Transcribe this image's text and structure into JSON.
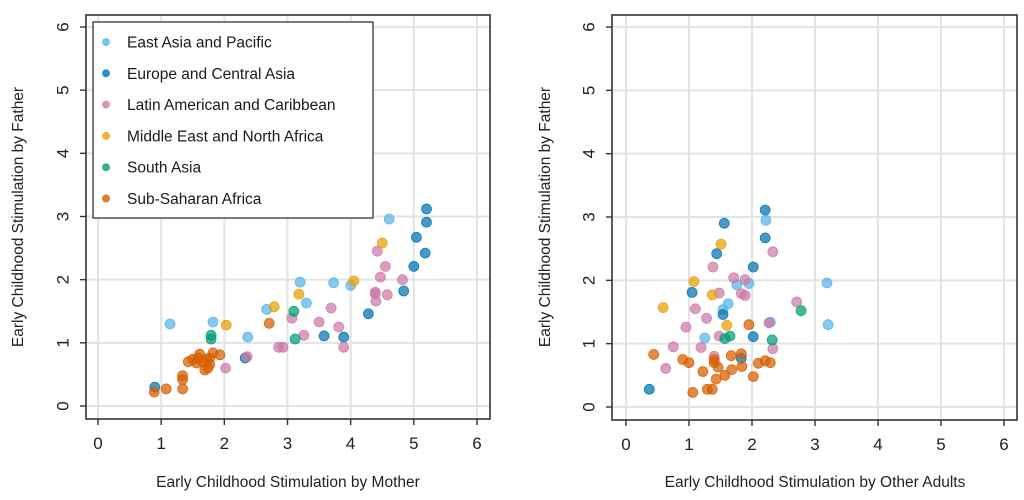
{
  "chart_data": {
    "type": "scatter",
    "categories_colors": {
      "East Asia and Pacific": "#56B4E9",
      "Europe and Central Asia": "#0072B2",
      "Latin American and Caribbean": "#CC79A7",
      "Middle East and North Africa": "#E69F00",
      "South Asia": "#009E73",
      "Sub-Saharan Africa": "#D55E00"
    },
    "legend": {
      "placement": "top-left",
      "entries": [
        {
          "key": "EAP",
          "label": "East Asia and Pacific",
          "color": "#56B4E9"
        },
        {
          "key": "ECA",
          "label": "Europe and Central Asia",
          "color": "#0072B2"
        },
        {
          "key": "LAC",
          "label": "Latin American and Caribbean",
          "color": "#CC79A7"
        },
        {
          "key": "MENA",
          "label": "Middle East and North Africa",
          "color": "#E69F00"
        },
        {
          "key": "SA",
          "label": "South Asia",
          "color": "#009E73"
        },
        {
          "key": "SSA",
          "label": "Sub-Saharan Africa",
          "color": "#D55E00"
        }
      ]
    },
    "panels": [
      {
        "name": "mother",
        "xlabel": "Early Childhood Stimulation by Mother",
        "ylabel": "Early Childhood Stimulation by Father",
        "xlim": [
          0,
          6
        ],
        "ylim": [
          0,
          6
        ],
        "xticks": [
          "0",
          "1",
          "2",
          "3",
          "4",
          "5",
          "6"
        ],
        "yticks": [
          "0",
          "1",
          "2",
          "3",
          "4",
          "5",
          "6"
        ],
        "grid": true,
        "has_legend": true,
        "series": [
          {
            "key": "EAP",
            "points": [
              [
                1.14,
                1.3
              ],
              [
                1.82,
                1.33
              ],
              [
                2.37,
                1.09
              ],
              [
                2.67,
                1.53
              ],
              [
                3.2,
                1.96
              ],
              [
                3.3,
                1.63
              ],
              [
                3.73,
                1.95
              ],
              [
                4.0,
                1.91
              ],
              [
                4.61,
                2.96
              ]
            ]
          },
          {
            "key": "ECA",
            "points": [
              [
                0.9,
                0.3
              ],
              [
                2.33,
                0.76
              ],
              [
                3.58,
                1.11
              ],
              [
                3.89,
                1.09
              ],
              [
                4.28,
                1.46
              ],
              [
                4.84,
                1.82
              ],
              [
                5.0,
                2.21
              ],
              [
                5.18,
                2.42
              ],
              [
                5.04,
                2.67
              ],
              [
                5.2,
                2.91
              ],
              [
                5.2,
                3.12
              ]
            ]
          },
          {
            "key": "LAC",
            "points": [
              [
                2.02,
                0.6
              ],
              [
                2.36,
                0.78
              ],
              [
                2.86,
                0.93
              ],
              [
                2.93,
                0.93
              ],
              [
                3.07,
                1.39
              ],
              [
                3.26,
                1.12
              ],
              [
                3.5,
                1.33
              ],
              [
                3.69,
                1.55
              ],
              [
                3.81,
                1.25
              ],
              [
                3.89,
                0.93
              ],
              [
                4.39,
                1.8
              ],
              [
                4.39,
                1.78
              ],
              [
                4.4,
                1.66
              ],
              [
                4.58,
                1.76
              ],
              [
                4.47,
                2.04
              ],
              [
                4.55,
                2.21
              ],
              [
                4.42,
                2.45
              ],
              [
                4.82,
                2.0
              ]
            ]
          },
          {
            "key": "MENA",
            "points": [
              [
                2.03,
                1.28
              ],
              [
                2.79,
                1.57
              ],
              [
                3.18,
                1.77
              ],
              [
                4.05,
                1.98
              ],
              [
                4.5,
                2.58
              ]
            ]
          },
          {
            "key": "SA",
            "points": [
              [
                1.79,
                1.12
              ],
              [
                1.79,
                1.06
              ],
              [
                3.1,
                1.5
              ],
              [
                3.12,
                1.06
              ]
            ]
          },
          {
            "key": "SSA",
            "points": [
              [
                0.89,
                0.22
              ],
              [
                1.08,
                0.27
              ],
              [
                1.34,
                0.27
              ],
              [
                1.34,
                0.48
              ],
              [
                1.34,
                0.42
              ],
              [
                1.43,
                0.7
              ],
              [
                1.5,
                0.74
              ],
              [
                1.61,
                0.82
              ],
              [
                1.56,
                0.68
              ],
              [
                1.66,
                0.7
              ],
              [
                1.72,
                0.74
              ],
              [
                1.77,
                0.66
              ],
              [
                1.69,
                0.57
              ],
              [
                1.74,
                0.6
              ],
              [
                1.82,
                0.84
              ],
              [
                1.93,
                0.81
              ],
              [
                1.58,
                0.76
              ],
              [
                1.77,
                0.76
              ],
              [
                2.71,
                1.31
              ]
            ]
          }
        ]
      },
      {
        "name": "other-adults",
        "xlabel": "Early Childhood Stimulation by Other Adults",
        "ylabel": "Early Childhood Stimulation by Father",
        "xlim": [
          0,
          6
        ],
        "ylim": [
          0,
          6
        ],
        "xticks": [
          "0",
          "1",
          "2",
          "3",
          "4",
          "5",
          "6"
        ],
        "yticks": [
          "0",
          "1",
          "2",
          "3",
          "4",
          "5",
          "6"
        ],
        "grid": true,
        "has_legend": false,
        "series": [
          {
            "key": "EAP",
            "points": [
              [
                1.25,
                1.09
              ],
              [
                1.54,
                1.54
              ],
              [
                1.62,
                1.63
              ],
              [
                1.76,
                1.93
              ],
              [
                1.95,
                1.95
              ],
              [
                2.22,
                2.95
              ],
              [
                2.29,
                1.34
              ],
              [
                3.19,
                1.96
              ],
              [
                3.21,
                1.3
              ]
            ]
          },
          {
            "key": "ECA",
            "points": [
              [
                0.37,
                0.28
              ],
              [
                1.05,
                1.81
              ],
              [
                1.44,
                2.42
              ],
              [
                1.54,
                1.46
              ],
              [
                1.56,
                2.9
              ],
              [
                1.83,
                0.77
              ],
              [
                2.02,
                1.11
              ],
              [
                2.02,
                2.21
              ],
              [
                2.21,
                2.67
              ],
              [
                2.21,
                3.11
              ]
            ]
          },
          {
            "key": "LAC",
            "points": [
              [
                0.63,
                0.61
              ],
              [
                0.75,
                0.95
              ],
              [
                0.95,
                1.26
              ],
              [
                1.1,
                1.55
              ],
              [
                1.19,
                0.94
              ],
              [
                1.28,
                1.4
              ],
              [
                1.38,
                2.21
              ],
              [
                1.4,
                0.8
              ],
              [
                1.48,
                1.12
              ],
              [
                1.48,
                1.8
              ],
              [
                1.71,
                2.04
              ],
              [
                1.83,
                1.79
              ],
              [
                1.89,
                1.76
              ],
              [
                1.89,
                2.01
              ],
              [
                2.27,
                1.33
              ],
              [
                2.33,
                0.92
              ],
              [
                2.33,
                2.45
              ],
              [
                2.71,
                1.66
              ]
            ]
          },
          {
            "key": "MENA",
            "points": [
              [
                0.59,
                1.57
              ],
              [
                1.08,
                1.98
              ],
              [
                1.37,
                1.77
              ],
              [
                1.51,
                2.57
              ],
              [
                1.6,
                1.29
              ]
            ]
          },
          {
            "key": "SA",
            "points": [
              [
                1.57,
                1.08
              ],
              [
                1.65,
                1.12
              ],
              [
                2.32,
                1.06
              ],
              [
                2.78,
                1.52
              ]
            ]
          },
          {
            "key": "SSA",
            "points": [
              [
                0.44,
                0.83
              ],
              [
                0.9,
                0.75
              ],
              [
                1.0,
                0.7
              ],
              [
                1.06,
                0.23
              ],
              [
                1.22,
                0.56
              ],
              [
                1.29,
                0.28
              ],
              [
                1.37,
                0.28
              ],
              [
                1.43,
                0.44
              ],
              [
                1.4,
                0.75
              ],
              [
                1.4,
                0.7
              ],
              [
                1.46,
                0.63
              ],
              [
                1.57,
                0.5
              ],
              [
                1.67,
                0.81
              ],
              [
                1.68,
                0.59
              ],
              [
                1.83,
                0.84
              ],
              [
                1.84,
                0.64
              ],
              [
                1.95,
                1.3
              ],
              [
                2.02,
                0.48
              ],
              [
                2.1,
                0.69
              ],
              [
                2.21,
                0.73
              ],
              [
                2.29,
                0.7
              ]
            ]
          }
        ]
      }
    ]
  }
}
